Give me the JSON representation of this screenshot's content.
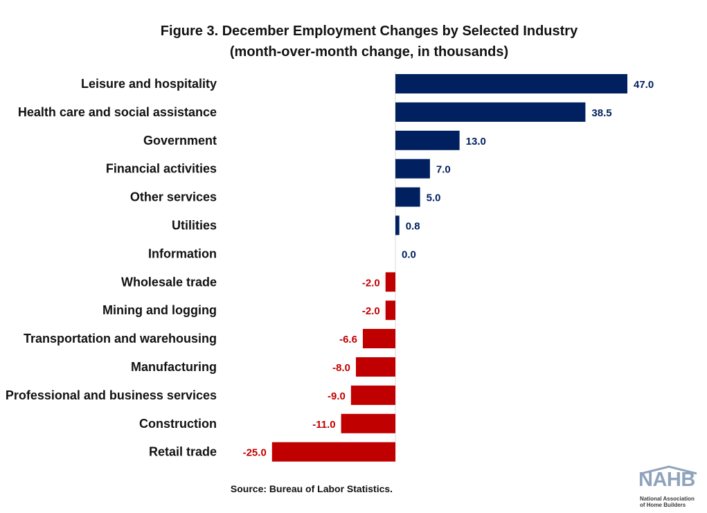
{
  "chart_data": {
    "type": "bar",
    "orientation": "horizontal",
    "title": "Figure 3. December Employment Changes by Selected Industry",
    "subtitle": "(month-over-month change, in thousands)",
    "categories": [
      "Leisure and hospitality",
      "Health care and social  assistance",
      "Government",
      "Financial activities",
      "Other services",
      "Utilities",
      "Information",
      "Wholesale trade",
      "Mining and logging",
      "Transportation and warehousing",
      "Manufacturing",
      "Professional and business services",
      "Construction",
      "Retail trade"
    ],
    "values": [
      47.0,
      38.5,
      13.0,
      7.0,
      5.0,
      0.8,
      0.0,
      -2.0,
      -2.0,
      -6.6,
      -8.0,
      -9.0,
      -11.0,
      -25.0
    ],
    "value_labels": [
      "47.0",
      "38.5",
      "13.0",
      "7.0",
      "5.0",
      "0.8",
      "0.0",
      "-2.0",
      "-2.0",
      "-6.6",
      "-8.0",
      "-9.0",
      "-11.0",
      "-25.0"
    ],
    "xlim": [
      -25,
      47
    ],
    "grid": false,
    "legend": "none",
    "colors": {
      "positive": "#002060",
      "negative": "#c00000",
      "text": "#111111"
    }
  },
  "source": "Source: Bureau of Labor Statistics.",
  "logo": {
    "mark": "NAHB",
    "line1": "National Association",
    "line2": "of Home Builders"
  }
}
